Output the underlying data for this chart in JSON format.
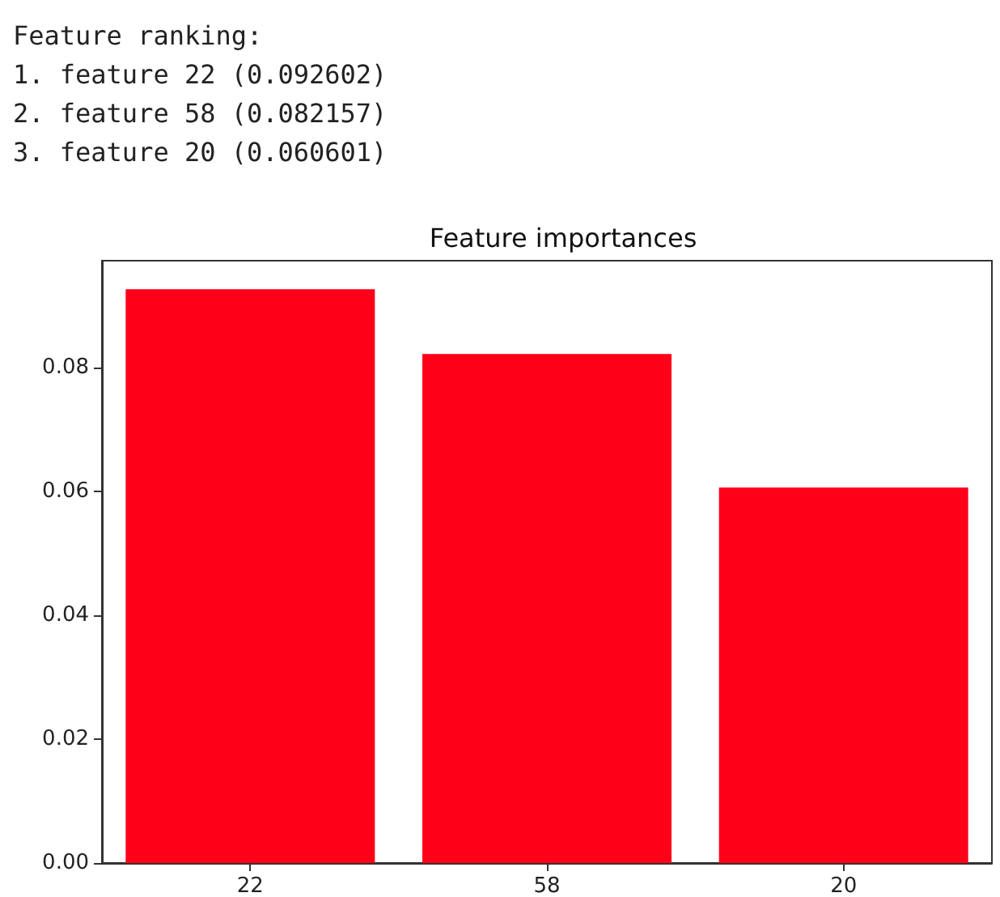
{
  "chart_data": {
    "type": "bar",
    "title": "Feature importances",
    "annotations": [
      "Feature ranking:",
      "1. feature 22 (0.092602)",
      "2. feature 58 (0.082157)",
      "3. feature 20 (0.060601)"
    ],
    "categories": [
      "22",
      "58",
      "20"
    ],
    "values": [
      0.092602,
      0.082157,
      0.060601
    ],
    "color": "#ff0019",
    "ylim": [
      0,
      0.0972
    ],
    "yticks": [
      {
        "value": 0,
        "label": "0.00"
      },
      {
        "value": 0.02,
        "label": "0.02"
      },
      {
        "value": 0.04,
        "label": "0.04"
      },
      {
        "value": 0.06,
        "label": "0.06"
      },
      {
        "value": 0.08,
        "label": "0.08"
      }
    ],
    "grid": false
  }
}
